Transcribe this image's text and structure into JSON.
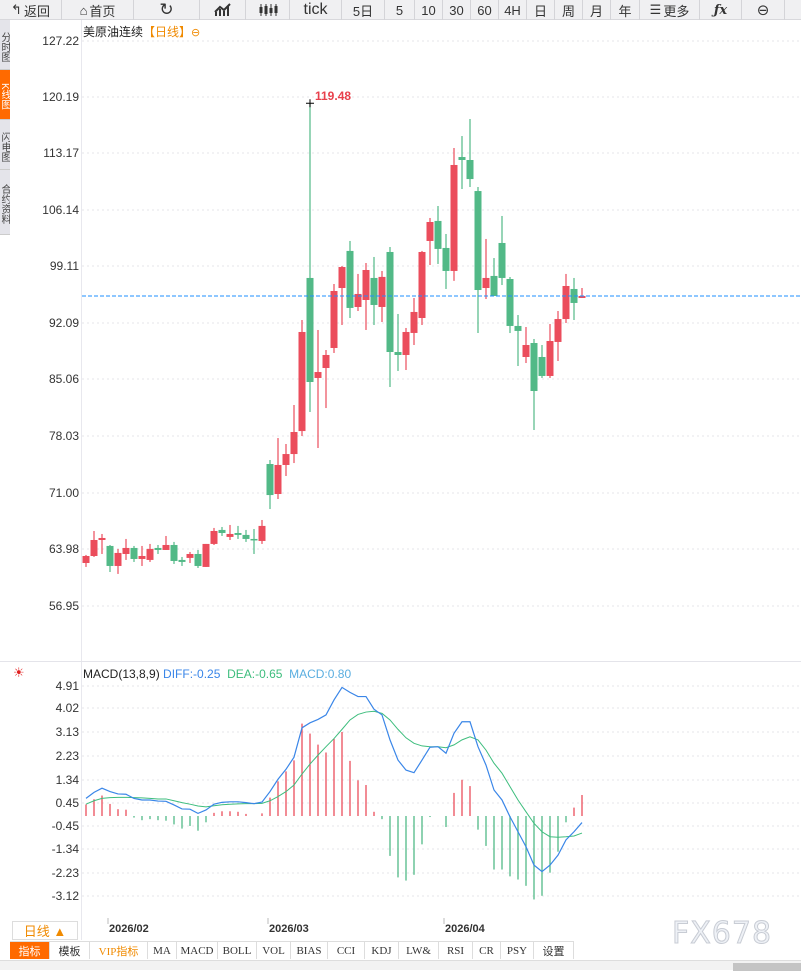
{
  "toolbar": {
    "back": "返回",
    "home": "首页",
    "tick": "tick",
    "five_day": "5日",
    "m5": "5",
    "m10": "10",
    "m30": "30",
    "m60": "60",
    "h4": "4H",
    "day": "日",
    "week": "周",
    "month": "月",
    "year": "年",
    "more": "更多"
  },
  "side_tabs": [
    "分时图",
    "K线图",
    "闪电图",
    "合约资料"
  ],
  "title": {
    "name": "美原油连续",
    "period": "【日线】",
    "icon": "⊖"
  },
  "price_axis": [
    "127.22",
    "120.19",
    "113.17",
    "106.14",
    "99.11",
    "92.09",
    "85.06",
    "78.03",
    "71.00",
    "63.98",
    "56.95"
  ],
  "macd_axis": [
    "4.91",
    "4.02",
    "3.13",
    "2.23",
    "1.34",
    "0.45",
    "-0.45",
    "-1.34",
    "-2.23",
    "-3.12"
  ],
  "macd_legend": {
    "name": "MACD(13,8,9)",
    "diff": "DIFF:-0.25",
    "dea": "DEA:-0.65",
    "macd": "MACD:0.80"
  },
  "period_button": "日线 ▲",
  "x_labels": [
    {
      "label": "2026/02",
      "index": 3
    },
    {
      "label": "2026/03",
      "index": 23
    },
    {
      "label": "2026/04",
      "index": 45
    }
  ],
  "indicator_tabs": [
    "指标",
    "模板",
    "VIP指标",
    "MA",
    "MACD",
    "BOLL",
    "VOL",
    "BIAS",
    "CCI",
    "KDJ",
    "LW&",
    "RSI",
    "CR",
    "PSY",
    "设置"
  ],
  "watermark": "FX678",
  "colors": {
    "up": "#eb4d5c",
    "down": "#52b987",
    "diff": "#3a86e8",
    "dea": "#3dbd7d",
    "macd": "#5aaee0",
    "accent": "#ff6a00",
    "last_line": "#1e8fff"
  },
  "chart_data": {
    "type": "candlestick",
    "title": "美原油连续 日线",
    "ylim": [
      56.95,
      127.22
    ],
    "max_label": "119.48",
    "last_price": 95.51,
    "ohlc": [
      [
        62.3,
        63.3,
        61.81,
        63.17
      ],
      [
        63.17,
        66.28,
        63.05,
        65.16
      ],
      [
        65.16,
        65.91,
        63.42,
        65.41
      ],
      [
        64.42,
        64.54,
        61.18,
        61.93
      ],
      [
        61.93,
        64.05,
        60.94,
        63.55
      ],
      [
        63.42,
        65.29,
        62.68,
        64.17
      ],
      [
        64.17,
        64.42,
        62.43,
        62.8
      ],
      [
        62.8,
        64.42,
        61.93,
        63.17
      ],
      [
        62.68,
        64.67,
        62.43,
        64.05
      ],
      [
        64.17,
        64.54,
        63.42,
        63.92
      ],
      [
        63.92,
        65.66,
        63.92,
        64.54
      ],
      [
        64.54,
        64.92,
        62.18,
        62.55
      ],
      [
        62.68,
        63.05,
        61.93,
        62.43
      ],
      [
        62.93,
        63.67,
        62.3,
        63.42
      ],
      [
        63.42,
        63.92,
        61.68,
        61.93
      ],
      [
        61.81,
        64.67,
        61.81,
        64.67
      ],
      [
        64.67,
        66.66,
        64.54,
        66.28
      ],
      [
        66.41,
        66.78,
        65.66,
        66.03
      ],
      [
        65.54,
        67.03,
        65.16,
        65.91
      ],
      [
        66.03,
        66.91,
        65.29,
        65.79
      ],
      [
        65.79,
        66.41,
        64.92,
        65.29
      ],
      [
        65.29,
        66.53,
        63.42,
        65.16
      ],
      [
        65.04,
        67.65,
        64.67,
        66.91
      ],
      [
        74.61,
        75.11,
        69.01,
        70.75
      ],
      [
        70.88,
        77.84,
        70.26,
        74.49
      ],
      [
        74.49,
        77.1,
        73.12,
        75.85
      ],
      [
        75.85,
        81.95,
        74.73,
        78.59
      ],
      [
        78.71,
        92.52,
        78.09,
        91.03
      ],
      [
        97.75,
        119.48,
        81.08,
        84.81
      ],
      [
        85.31,
        91.28,
        76.6,
        86.05
      ],
      [
        86.55,
        88.79,
        81.57,
        88.17
      ],
      [
        89.04,
        97.0,
        88.42,
        96.13
      ],
      [
        96.5,
        99.24,
        91.9,
        99.11
      ],
      [
        101.11,
        102.35,
        92.77,
        94.02
      ],
      [
        94.14,
        98.25,
        93.64,
        95.76
      ],
      [
        95.01,
        99.61,
        91.28,
        98.74
      ],
      [
        97.75,
        100.36,
        91.9,
        94.39
      ],
      [
        94.14,
        98.62,
        92.27,
        97.88
      ],
      [
        100.98,
        101.6,
        84.19,
        88.54
      ],
      [
        88.54,
        93.27,
        86.18,
        88.17
      ],
      [
        88.17,
        91.53,
        86.3,
        91.03
      ],
      [
        90.91,
        95.26,
        89.41,
        93.52
      ],
      [
        92.77,
        101.11,
        91.9,
        100.98
      ],
      [
        102.35,
        105.21,
        99.36,
        104.71
      ],
      [
        104.84,
        106.7,
        99.49,
        101.36
      ],
      [
        101.48,
        103.22,
        96.38,
        98.62
      ],
      [
        98.62,
        113.91,
        97.38,
        111.8
      ],
      [
        112.79,
        115.4,
        108.81,
        112.42
      ],
      [
        112.42,
        117.52,
        109.06,
        110.05
      ],
      [
        108.56,
        109.06,
        90.9,
        96.25
      ],
      [
        96.5,
        102.6,
        95.13,
        97.75
      ],
      [
        98.0,
        100.23,
        95.51,
        95.51
      ],
      [
        102.1,
        105.46,
        96.87,
        97.75
      ],
      [
        97.62,
        97.87,
        90.9,
        91.78
      ],
      [
        91.78,
        93.14,
        86.8,
        91.16
      ],
      [
        87.92,
        91.65,
        87.17,
        89.41
      ],
      [
        89.66,
        90.16,
        78.84,
        83.69
      ],
      [
        87.92,
        89.41,
        85.31,
        85.56
      ],
      [
        85.56,
        92.02,
        85.31,
        89.91
      ],
      [
        89.79,
        93.64,
        87.42,
        92.64
      ],
      [
        92.64,
        98.25,
        92.15,
        96.75
      ],
      [
        96.38,
        97.75,
        92.52,
        94.64
      ],
      [
        95.26,
        96.5,
        95.26,
        95.51
      ]
    ],
    "macd": {
      "ylim": [
        -3.5,
        5.2
      ],
      "diff": [
        0.67,
        0.9,
        1.06,
        0.93,
        0.84,
        0.83,
        0.67,
        0.61,
        0.61,
        0.57,
        0.56,
        0.42,
        0.27,
        0.26,
        0.1,
        0.23,
        0.45,
        0.52,
        0.54,
        0.54,
        0.51,
        0.47,
        0.53,
        0.93,
        1.4,
        1.78,
        2.24,
        3.36,
        3.55,
        3.68,
        3.85,
        4.42,
        4.9,
        4.71,
        4.55,
        4.55,
        4.07,
        3.85,
        2.9,
        2.13,
        1.75,
        1.65,
        2.13,
        2.62,
        2.64,
        2.39,
        3.15,
        3.59,
        3.59,
        2.64,
        1.94,
        0.99,
        0.61,
        -0.03,
        -0.6,
        -1.17,
        -1.87,
        -2.12,
        -1.87,
        -1.49,
        -0.91,
        -0.6,
        -0.25
      ],
      "dea": [
        0.45,
        0.58,
        0.67,
        0.7,
        0.71,
        0.71,
        0.7,
        0.69,
        0.67,
        0.65,
        0.65,
        0.58,
        0.51,
        0.45,
        0.38,
        0.35,
        0.39,
        0.43,
        0.45,
        0.46,
        0.47,
        0.47,
        0.48,
        0.58,
        0.74,
        0.93,
        1.18,
        1.6,
        1.98,
        2.32,
        2.64,
        2.95,
        3.3,
        3.66,
        3.87,
        3.96,
        3.99,
        3.91,
        3.66,
        3.3,
        2.98,
        2.77,
        2.67,
        2.64,
        2.64,
        2.6,
        2.71,
        2.9,
        3.02,
        2.9,
        2.51,
        2.01,
        1.63,
        1.12,
        0.61,
        0.16,
        -0.28,
        -0.6,
        -0.79,
        -0.81,
        -0.79,
        -0.76,
        -0.65
      ]
    }
  }
}
